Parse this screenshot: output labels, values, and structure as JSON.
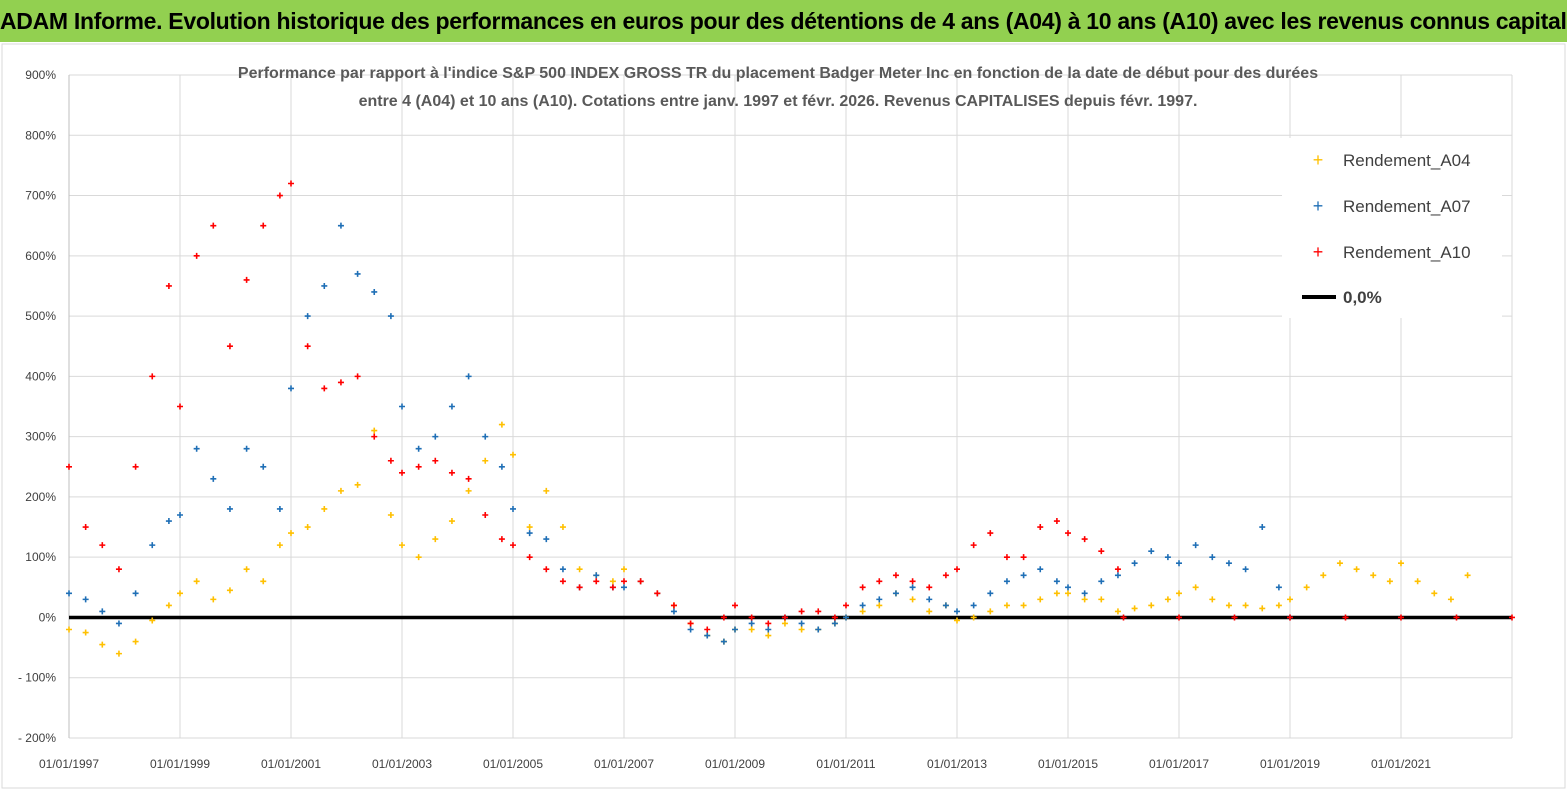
{
  "header": {
    "title": "ADAM Informe. Evolution historique des performances en euros pour des détentions de 4 ans (A04) à 10 ans (A10) avec les revenus connus capitalisés"
  },
  "colors": {
    "banner": "#92d050",
    "a04": "#ffc000",
    "a07": "#1f6fb6",
    "a10": "#ff0000",
    "zero": "#000000"
  },
  "chart_data": {
    "type": "scatter",
    "title_line1": "Performance par rapport à l'indice S&P 500 INDEX GROSS TR  du placement Badger Meter Inc en fonction de la date de début pour des durées",
    "title_line2": "entre 4 (A04) et 10 ans (A10). Cotations entre janv. 1997 et févr. 2026. Revenus CAPITALISES depuis févr. 1997.",
    "xlabel": "",
    "ylabel": "",
    "ylim": [
      -200,
      900
    ],
    "xlim": [
      1997.0,
      2023.0
    ],
    "yticks": [
      "900%",
      "800%",
      "700%",
      "600%",
      "500%",
      "400%",
      "300%",
      "200%",
      "100%",
      "0%",
      "- 100%",
      "- 200%"
    ],
    "yticks_values": [
      900,
      800,
      700,
      600,
      500,
      400,
      300,
      200,
      100,
      0,
      -100,
      -200
    ],
    "xticks": [
      "01/01/1997",
      "01/01/1999",
      "01/01/2001",
      "01/01/2003",
      "01/01/2005",
      "01/01/2007",
      "01/01/2009",
      "01/01/2011",
      "01/01/2013",
      "01/01/2015",
      "01/01/2017",
      "01/01/2019",
      "01/01/2021"
    ],
    "xticks_values": [
      1997,
      1999,
      2001,
      2003,
      2005,
      2007,
      2009,
      2011,
      2013,
      2015,
      2017,
      2019,
      2021
    ],
    "grid": true,
    "legend_position": "top-right",
    "series": [
      {
        "name": "Rendement_A04",
        "x": [
          1997.0,
          1997.3,
          1997.6,
          1997.9,
          1998.2,
          1998.5,
          1998.8,
          1999.0,
          1999.3,
          1999.6,
          1999.9,
          2000.2,
          2000.5,
          2000.8,
          2001.0,
          2001.3,
          2001.6,
          2001.9,
          2002.2,
          2002.5,
          2002.8,
          2003.0,
          2003.3,
          2003.6,
          2003.9,
          2004.2,
          2004.5,
          2004.8,
          2005.0,
          2005.3,
          2005.6,
          2005.9,
          2006.2,
          2006.5,
          2006.8,
          2007.0,
          2007.3,
          2007.6,
          2007.9,
          2008.2,
          2008.5,
          2008.8,
          2009.0,
          2009.3,
          2009.6,
          2009.9,
          2010.2,
          2010.5,
          2010.8,
          2011.0,
          2011.3,
          2011.6,
          2011.9,
          2012.2,
          2012.5,
          2012.8,
          2013.0,
          2013.3,
          2013.6,
          2013.9,
          2014.2,
          2014.5,
          2014.8,
          2015.0,
          2015.3,
          2015.6,
          2015.9,
          2016.2,
          2016.5,
          2016.8,
          2017.0,
          2017.3,
          2017.6,
          2017.9,
          2018.2,
          2018.5,
          2018.8,
          2019.0,
          2019.3,
          2019.6,
          2019.9,
          2020.2,
          2020.5,
          2020.8,
          2021.0,
          2021.3,
          2021.6,
          2021.9,
          2022.2
        ],
        "values": [
          -20,
          -25,
          -45,
          -60,
          -40,
          -5,
          20,
          40,
          60,
          30,
          45,
          80,
          60,
          120,
          140,
          150,
          180,
          210,
          220,
          310,
          170,
          120,
          100,
          130,
          160,
          210,
          260,
          320,
          270,
          150,
          210,
          150,
          80,
          70,
          60,
          80,
          60,
          40,
          20,
          -10,
          -30,
          -40,
          -20,
          -20,
          -30,
          -10,
          -20,
          -20,
          -10,
          0,
          10,
          20,
          40,
          30,
          10,
          20,
          -5,
          0,
          10,
          20,
          20,
          30,
          40,
          40,
          30,
          30,
          10,
          15,
          20,
          30,
          40,
          50,
          30,
          20,
          20,
          15,
          20,
          30,
          50,
          70,
          90,
          80,
          70,
          60,
          90,
          60,
          40,
          30,
          70
        ]
      },
      {
        "name": "Rendement_A07",
        "x": [
          1997.0,
          1997.3,
          1997.6,
          1997.9,
          1998.2,
          1998.5,
          1998.8,
          1999.0,
          1999.3,
          1999.6,
          1999.9,
          2000.2,
          2000.5,
          2000.8,
          2001.0,
          2001.3,
          2001.6,
          2001.9,
          2002.2,
          2002.5,
          2002.8,
          2003.0,
          2003.3,
          2003.6,
          2003.9,
          2004.2,
          2004.5,
          2004.8,
          2005.0,
          2005.3,
          2005.6,
          2005.9,
          2006.2,
          2006.5,
          2006.8,
          2007.0,
          2007.3,
          2007.6,
          2007.9,
          2008.2,
          2008.5,
          2008.8,
          2009.0,
          2009.3,
          2009.6,
          2009.9,
          2010.2,
          2010.5,
          2010.8,
          2011.0,
          2011.3,
          2011.6,
          2011.9,
          2012.2,
          2012.5,
          2012.8,
          2013.0,
          2013.3,
          2013.6,
          2013.9,
          2014.2,
          2014.5,
          2014.8,
          2015.0,
          2015.3,
          2015.6,
          2015.9,
          2016.2,
          2016.5,
          2016.8,
          2017.0,
          2017.3,
          2017.6,
          2017.9,
          2018.2,
          2018.5,
          2018.8,
          2019.0
        ],
        "values": [
          40,
          30,
          10,
          -10,
          40,
          120,
          160,
          170,
          280,
          230,
          180,
          280,
          250,
          180,
          380,
          500,
          550,
          650,
          570,
          540,
          500,
          350,
          280,
          300,
          350,
          400,
          300,
          250,
          180,
          140,
          130,
          80,
          50,
          70,
          50,
          50,
          60,
          40,
          10,
          -20,
          -30,
          -40,
          -20,
          -10,
          -20,
          0,
          -10,
          -20,
          -10,
          0,
          20,
          30,
          40,
          50,
          30,
          20,
          10,
          20,
          40,
          60,
          70,
          80,
          60,
          50,
          40,
          60,
          70,
          90,
          110,
          100,
          90,
          120,
          100,
          90,
          80,
          150,
          50,
          0
        ]
      },
      {
        "name": "Rendement_A10",
        "x": [
          1997.0,
          1997.3,
          1997.6,
          1997.9,
          1998.2,
          1998.5,
          1998.8,
          1999.0,
          1999.3,
          1999.6,
          1999.9,
          2000.2,
          2000.5,
          2000.8,
          2001.0,
          2001.3,
          2001.6,
          2001.9,
          2002.2,
          2002.5,
          2002.8,
          2003.0,
          2003.3,
          2003.6,
          2003.9,
          2004.2,
          2004.5,
          2004.8,
          2005.0,
          2005.3,
          2005.6,
          2005.9,
          2006.2,
          2006.5,
          2006.8,
          2007.0,
          2007.3,
          2007.6,
          2007.9,
          2008.2,
          2008.5,
          2008.8,
          2009.0,
          2009.3,
          2009.6,
          2009.9,
          2010.2,
          2010.5,
          2010.8,
          2011.0,
          2011.3,
          2011.6,
          2011.9,
          2012.2,
          2012.5,
          2012.8,
          2013.0,
          2013.3,
          2013.6,
          2013.9,
          2014.2,
          2014.5,
          2014.8,
          2015.0,
          2015.3,
          2015.6,
          2015.9,
          2016.0,
          2017.0,
          2018.0,
          2019.0,
          2020.0,
          2021.0,
          2022.0,
          2023.0
        ],
        "values": [
          250,
          150,
          120,
          80,
          250,
          400,
          550,
          350,
          600,
          650,
          450,
          560,
          650,
          700,
          720,
          450,
          380,
          390,
          400,
          300,
          260,
          240,
          250,
          260,
          240,
          230,
          170,
          130,
          120,
          100,
          80,
          60,
          50,
          60,
          50,
          60,
          60,
          40,
          20,
          -10,
          -20,
          0,
          20,
          0,
          -10,
          0,
          10,
          10,
          0,
          20,
          50,
          60,
          70,
          60,
          50,
          70,
          80,
          120,
          140,
          100,
          100,
          150,
          160,
          140,
          130,
          110,
          80,
          0,
          0,
          0,
          0,
          0,
          0,
          0,
          0
        ]
      },
      {
        "name": "0,0%",
        "x": [
          1997.0,
          2023.0
        ],
        "values": [
          0,
          0
        ]
      }
    ]
  }
}
